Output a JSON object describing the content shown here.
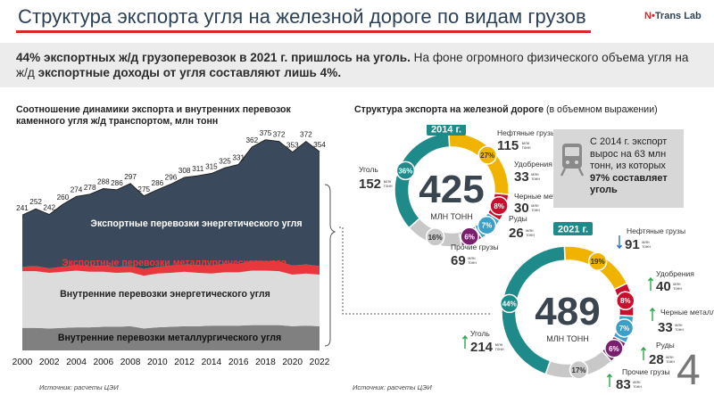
{
  "header": {
    "title": "Структура экспорта угля на железной дороге по видам грузов",
    "logo_pre": "N",
    "logo_dot": "•",
    "logo_post": "Trans Lab"
  },
  "banner": {
    "part1": "44% экспортных ж/д грузоперевозок в 2021 г. пришлось на уголь.",
    "part2": " На фоне огромного физического объема угля на ж/д ",
    "part3": "экспортные доходы от угля составляют лишь 4%."
  },
  "left": {
    "title": "Соотношение динамики экспорта и внутренних перевозок каменного угля ж/д транспортом, млн тонн",
    "source": "Источник: расчеты ЦЭИ"
  },
  "right": {
    "title_bold": "Структура экспорта на железной дороге",
    "title_norm": " (в объемном выражении)",
    "source": "Источник: расчеты ЦЭИ"
  },
  "infobox": {
    "line1": "С 2014 г. экспорт вырос на 63 млн тонн, из которых ",
    "line2": "97% составляет уголь",
    "icon": "train-icon"
  },
  "page_number": "4",
  "colors": {
    "export_energy": "#3a4a5c",
    "export_metal": "#e8383d",
    "domestic_energy": "#dcdcdc",
    "domestic_metal": "#808080",
    "coal": "#1f8a8a",
    "oil": "#f0b400",
    "fert": "#c8102e",
    "metal": "#3aa0c8",
    "ore": "#7a1f6e",
    "other": "#c8c8c8"
  },
  "chart_data": [
    {
      "type": "area",
      "stacked": true,
      "x": [
        2000,
        2001,
        2002,
        2003,
        2004,
        2005,
        2006,
        2007,
        2008,
        2009,
        2010,
        2011,
        2012,
        2013,
        2014,
        2015,
        2016,
        2017,
        2018,
        2019,
        2020,
        2021,
        2022
      ],
      "x_tick_labels": [
        "2000",
        "2002",
        "2004",
        "2006",
        "2008",
        "2010",
        "2012",
        "2014",
        "2016",
        "2018",
        "2020",
        "2022"
      ],
      "total_labels": [
        241,
        252,
        242,
        260,
        274,
        278,
        288,
        286,
        297,
        275,
        286,
        296,
        308,
        311,
        315,
        325,
        331,
        362,
        375,
        372,
        353,
        372,
        354
      ],
      "series": [
        {
          "name": "Внутренние перевозки металлургического угля",
          "values": [
            40,
            40,
            39,
            40,
            41,
            41,
            42,
            42,
            43,
            39,
            41,
            42,
            43,
            43,
            44,
            44,
            44,
            45,
            45,
            45,
            43,
            44,
            43
          ]
        },
        {
          "name": "Внутренние перевозки энергетического угля",
          "values": [
            101,
            101,
            99,
            100,
            101,
            99,
            98,
            96,
            96,
            94,
            96,
            96,
            97,
            95,
            93,
            95,
            95,
            97,
            97,
            96,
            92,
            93,
            92
          ]
        },
        {
          "name": "Экспортные перевозки металлургического угля",
          "values": [
            8,
            9,
            8,
            9,
            10,
            10,
            11,
            11,
            11,
            12,
            12,
            13,
            13,
            14,
            14,
            15,
            15,
            17,
            17,
            17,
            16,
            16,
            15
          ]
        },
        {
          "name": "Экспортные перевозки энергетического угля",
          "values": [
            92,
            102,
            96,
            111,
            122,
            128,
            137,
            137,
            147,
            130,
            137,
            145,
            155,
            159,
            164,
            171,
            177,
            203,
            216,
            214,
            202,
            219,
            204
          ]
        }
      ],
      "ylim": [
        0,
        400
      ]
    },
    {
      "type": "pie",
      "donut": true,
      "year": "2014 г.",
      "total": "425",
      "total_unit": "МЛН ТОНН",
      "unit_small": "млн тонн",
      "slices": [
        {
          "label": "Уголь",
          "value": 152,
          "pct": "36",
          "color": "#1f8a8a"
        },
        {
          "label": "Нефтяные грузы",
          "value": 115,
          "pct": "27",
          "color": "#f0b400"
        },
        {
          "label": "Удобрения",
          "value": 33,
          "pct": "8",
          "color": "#c8102e"
        },
        {
          "label": "Черные металлы",
          "value": 30,
          "pct": "7",
          "color": "#3aa0c8"
        },
        {
          "label": "Руды",
          "value": 26,
          "pct": "6",
          "color": "#7a1f6e"
        },
        {
          "label": "Прочие грузы",
          "value": 69,
          "pct": "16",
          "color": "#c8c8c8"
        }
      ]
    },
    {
      "type": "pie",
      "donut": true,
      "year": "2021 г.",
      "total": "489",
      "total_unit": "МЛН ТОНН",
      "unit_small": "млн тонн",
      "slices": [
        {
          "label": "Уголь",
          "value": 214,
          "pct": "44",
          "color": "#1f8a8a",
          "trend": "up"
        },
        {
          "label": "Нефтяные грузы",
          "value": 91,
          "pct": "19",
          "color": "#f0b400",
          "trend": "down"
        },
        {
          "label": "Удобрения",
          "value": 40,
          "pct": "8",
          "color": "#c8102e",
          "trend": "up"
        },
        {
          "label": "Черные металлы",
          "value": 33,
          "pct": "7",
          "color": "#3aa0c8",
          "trend": "up"
        },
        {
          "label": "Руды",
          "value": 28,
          "pct": "6",
          "color": "#7a1f6e",
          "trend": "up"
        },
        {
          "label": "Прочие грузы",
          "value": 83,
          "pct": "17",
          "color": "#c8c8c8",
          "trend": "up"
        }
      ]
    }
  ]
}
